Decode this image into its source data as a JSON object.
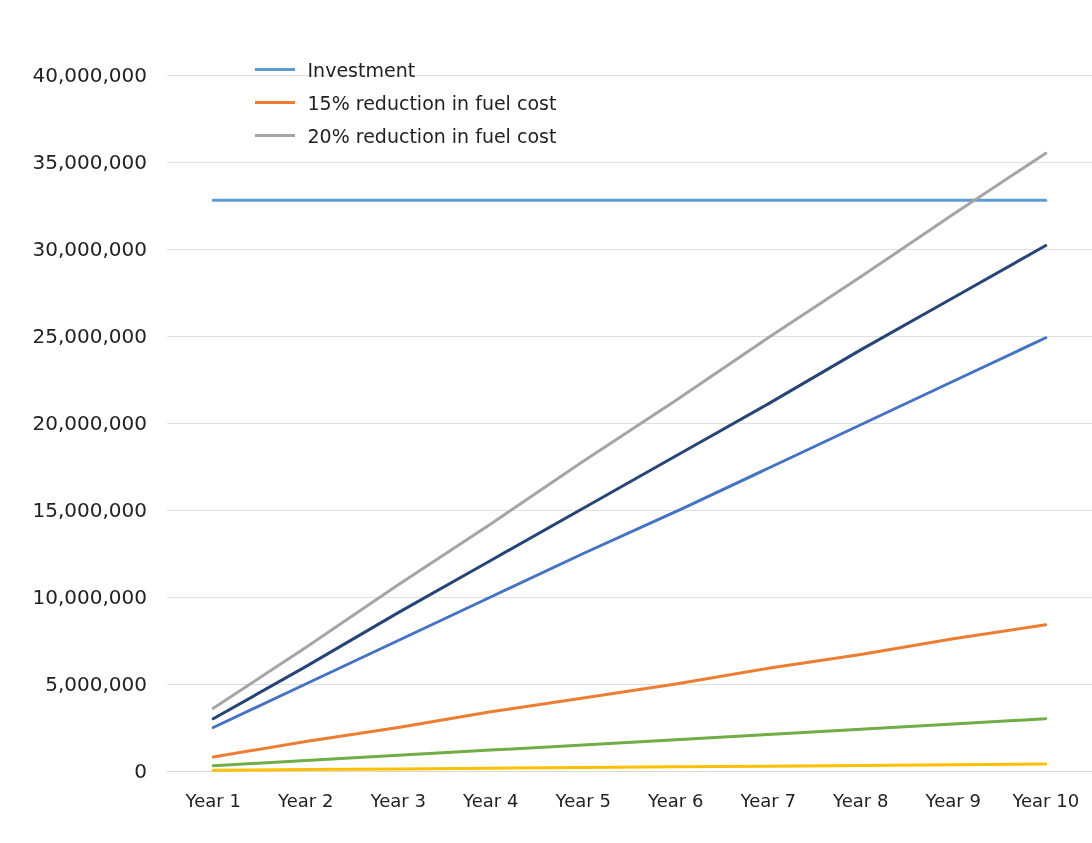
{
  "chart_data": {
    "type": "line",
    "categories": [
      "Year 1",
      "Year 2",
      "Year 3",
      "Year 4",
      "Year 5",
      "Year 6",
      "Year 7",
      "Year 8",
      "Year 9",
      "Year 10"
    ],
    "series": [
      {
        "name": "Investment",
        "color": "#5b9bd5",
        "values": [
          32800000,
          32800000,
          32800000,
          32800000,
          32800000,
          32800000,
          32800000,
          32800000,
          32800000,
          32800000
        ]
      },
      {
        "name": "15% reduction in fuel cost",
        "color": "#ed7d31",
        "values": [
          800000,
          1700000,
          2500000,
          3400000,
          4200000,
          5000000,
          5900000,
          6700000,
          7600000,
          8400000
        ]
      },
      {
        "name": "20% reduction in fuel cost",
        "color": "#a5a5a5",
        "values": [
          3600000,
          7100000,
          10700000,
          14200000,
          17800000,
          21300000,
          24900000,
          28400000,
          32000000,
          35500000
        ]
      },
      {
        "color": "#264478",
        "values": [
          3000000,
          6000000,
          9100000,
          12100000,
          15100000,
          18100000,
          21100000,
          24200000,
          27200000,
          30200000
        ]
      },
      {
        "color": "#4472c4",
        "values": [
          2500000,
          5000000,
          7500000,
          10000000,
          12500000,
          14900000,
          17400000,
          19900000,
          22400000,
          24900000
        ]
      },
      {
        "color": "#70ad47",
        "values": [
          300000,
          600000,
          900000,
          1200000,
          1500000,
          1800000,
          2100000,
          2400000,
          2700000,
          3000000
        ]
      },
      {
        "color": "#ffc000",
        "values": [
          40000,
          80000,
          120000,
          160000,
          200000,
          240000,
          280000,
          320000,
          360000,
          400000
        ]
      }
    ],
    "ylim": [
      0,
      40000000
    ],
    "yticks": [
      0,
      {
        "value": 5000000,
        "label": "5,000,000"
      },
      {
        "value": 10000000,
        "label": "10,000,000"
      },
      {
        "value": 15000000,
        "label": "15,000,000"
      },
      {
        "value": 20000000,
        "label": "20,000,000"
      },
      {
        "value": 25000000,
        "label": "25,000,000"
      },
      {
        "value": 30000000,
        "label": "30,000,000"
      },
      {
        "value": 35000000,
        "label": "35,000,000"
      },
      {
        "value": 40000000,
        "label": "40,000,000"
      }
    ],
    "grid": "y",
    "legend": "top left",
    "marker": "none",
    "line_style": "solid"
  }
}
